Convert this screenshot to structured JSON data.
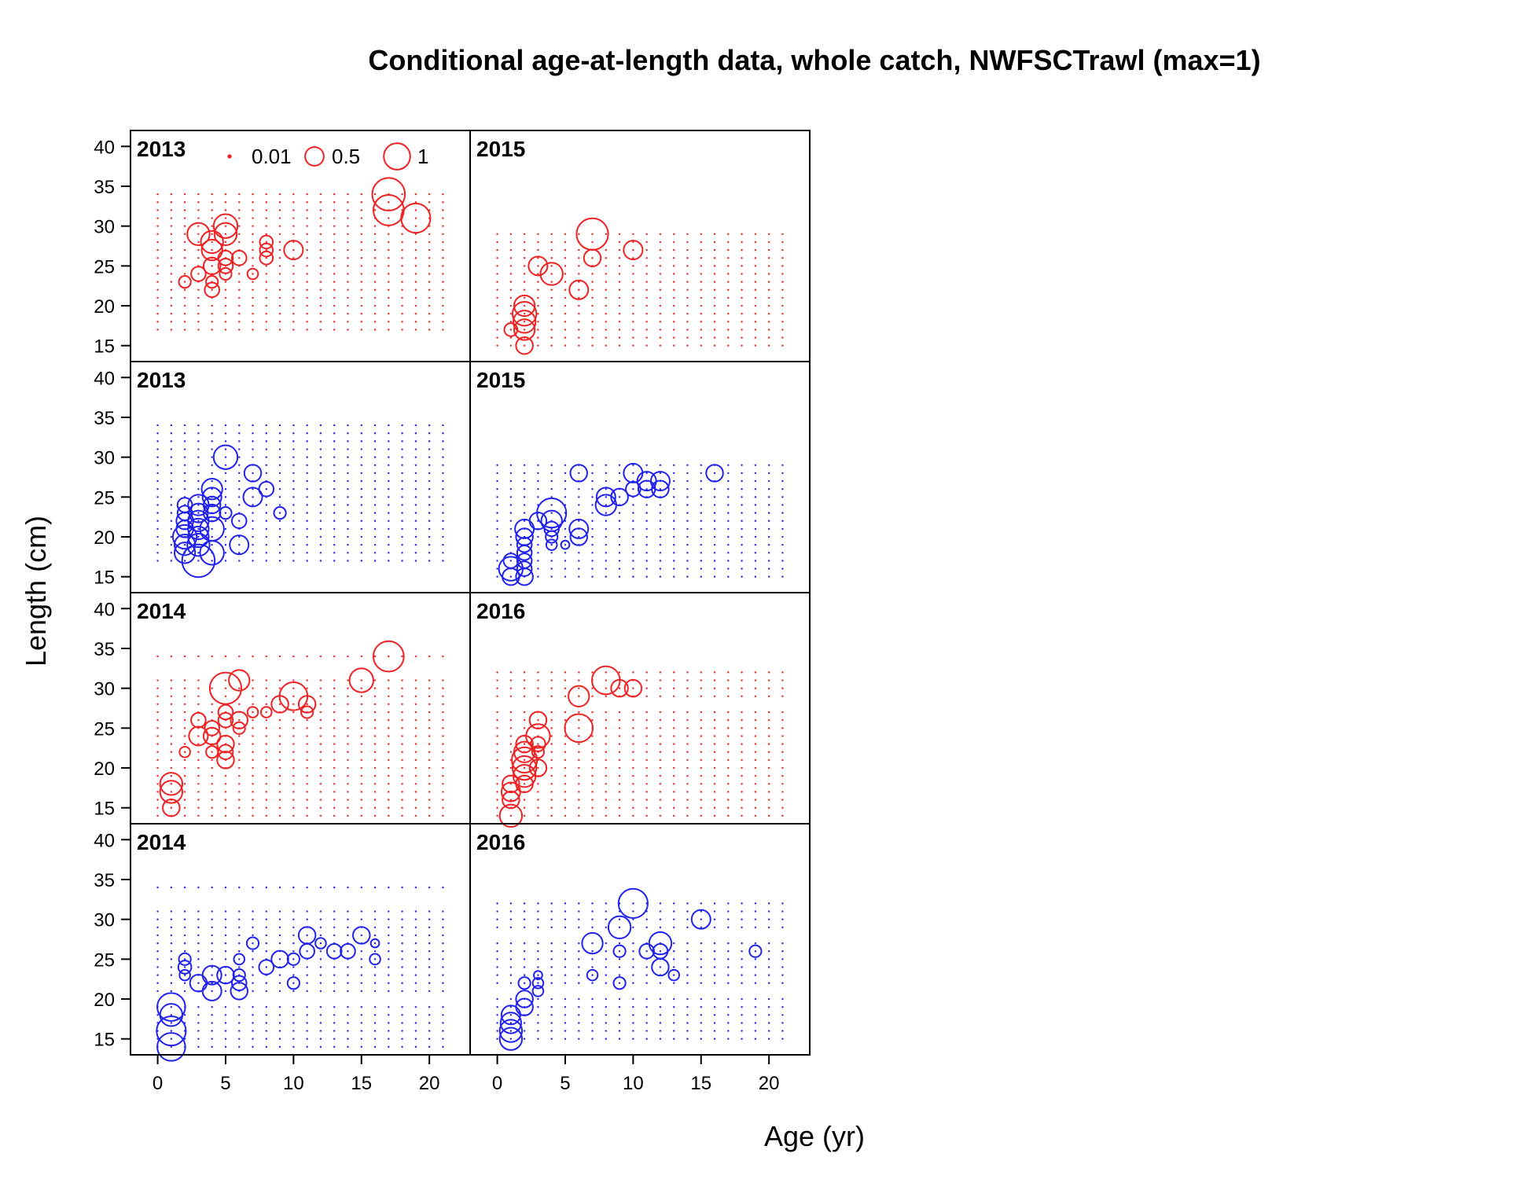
{
  "chart_data": {
    "type": "scatter",
    "title": "Conditional age-at-length data, whole catch, NWFSCTrawl (max=1)",
    "xlabel": "Age (yr)",
    "ylabel": "Length (cm)",
    "xlim": [
      -2,
      23
    ],
    "ylim": [
      13,
      42
    ],
    "x_ticks": [
      0,
      5,
      10,
      15,
      20
    ],
    "y_ticks": [
      15,
      20,
      25,
      30,
      35,
      40
    ],
    "legend": {
      "placement": "top-left",
      "entries": [
        {
          "label": "0.01",
          "value": 0.01
        },
        {
          "label": "0.5",
          "value": 0.5
        },
        {
          "label": "1",
          "value": 1
        }
      ]
    },
    "colors": {
      "female": "#ee2222",
      "male": "#2222ee"
    },
    "panels": [
      {
        "year": "2013",
        "color": "female",
        "row": 0,
        "col": 0,
        "grid": {
          "ages": [
            0,
            21
          ],
          "lengths": [
            [
              17,
              34
            ]
          ]
        },
        "points": [
          [
            2,
            23,
            0.1
          ],
          [
            3,
            24,
            0.15
          ],
          [
            3,
            29,
            0.35
          ],
          [
            4,
            22,
            0.15
          ],
          [
            4,
            23,
            0.1
          ],
          [
            4,
            25,
            0.2
          ],
          [
            4,
            27,
            0.3
          ],
          [
            4,
            28,
            0.35
          ],
          [
            5,
            24,
            0.1
          ],
          [
            5,
            25,
            0.15
          ],
          [
            5,
            26,
            0.15
          ],
          [
            5,
            29,
            0.35
          ],
          [
            5,
            30,
            0.4
          ],
          [
            6,
            26,
            0.15
          ],
          [
            7,
            24,
            0.08
          ],
          [
            8,
            26,
            0.12
          ],
          [
            8,
            27,
            0.12
          ],
          [
            8,
            28,
            0.12
          ],
          [
            10,
            27,
            0.25
          ],
          [
            17,
            32,
            0.65
          ],
          [
            17,
            34,
            0.75
          ],
          [
            19,
            31,
            0.6
          ]
        ]
      },
      {
        "year": "2015",
        "color": "female",
        "row": 0,
        "col": 1,
        "grid": {
          "ages": [
            0,
            21
          ],
          "lengths": [
            [
              15,
              29
            ]
          ]
        },
        "points": [
          [
            1,
            17,
            0.12
          ],
          [
            2,
            15,
            0.2
          ],
          [
            2,
            17,
            0.3
          ],
          [
            2,
            18,
            0.35
          ],
          [
            2,
            19,
            0.4
          ],
          [
            2,
            20,
            0.3
          ],
          [
            3,
            25,
            0.25
          ],
          [
            4,
            24,
            0.35
          ],
          [
            6,
            22,
            0.25
          ],
          [
            7,
            26,
            0.2
          ],
          [
            7,
            29,
            0.7
          ],
          [
            10,
            27,
            0.25
          ]
        ]
      },
      {
        "year": "2013",
        "color": "male",
        "row": 1,
        "col": 0,
        "grid": {
          "ages": [
            0,
            21
          ],
          "lengths": [
            [
              17,
              34
            ]
          ]
        },
        "points": [
          [
            2,
            18,
            0.3
          ],
          [
            2,
            19,
            0.3
          ],
          [
            2,
            20,
            0.4
          ],
          [
            2,
            21,
            0.2
          ],
          [
            2,
            22,
            0.2
          ],
          [
            2,
            23,
            0.15
          ],
          [
            2,
            24,
            0.15
          ],
          [
            3,
            17,
            0.75
          ],
          [
            3,
            19,
            0.35
          ],
          [
            3,
            20,
            0.3
          ],
          [
            3,
            21,
            0.3
          ],
          [
            3,
            22,
            0.3
          ],
          [
            3,
            23,
            0.25
          ],
          [
            3,
            24,
            0.3
          ],
          [
            4,
            18,
            0.4
          ],
          [
            4,
            21,
            0.4
          ],
          [
            4,
            23,
            0.2
          ],
          [
            4,
            24,
            0.2
          ],
          [
            4,
            25,
            0.25
          ],
          [
            4,
            26,
            0.3
          ],
          [
            5,
            23,
            0.1
          ],
          [
            5,
            30,
            0.4
          ],
          [
            6,
            19,
            0.25
          ],
          [
            6,
            22,
            0.15
          ],
          [
            7,
            25,
            0.25
          ],
          [
            7,
            28,
            0.2
          ],
          [
            8,
            26,
            0.15
          ],
          [
            9,
            23,
            0.1
          ]
        ]
      },
      {
        "year": "2015",
        "color": "male",
        "row": 1,
        "col": 1,
        "grid": {
          "ages": [
            0,
            21
          ],
          "lengths": [
            [
              15,
              29
            ]
          ]
        },
        "points": [
          [
            1,
            15,
            0.2
          ],
          [
            1,
            16,
            0.4
          ],
          [
            1,
            17,
            0.15
          ],
          [
            2,
            15,
            0.2
          ],
          [
            2,
            16,
            0.15
          ],
          [
            2,
            17,
            0.15
          ],
          [
            2,
            18,
            0.15
          ],
          [
            2,
            19,
            0.15
          ],
          [
            2,
            20,
            0.2
          ],
          [
            2,
            21,
            0.25
          ],
          [
            3,
            22,
            0.2
          ],
          [
            4,
            19,
            0.08
          ],
          [
            4,
            20,
            0.1
          ],
          [
            4,
            21,
            0.15
          ],
          [
            4,
            22,
            0.3
          ],
          [
            4,
            23,
            0.6
          ],
          [
            5,
            19,
            0.05
          ],
          [
            6,
            20,
            0.2
          ],
          [
            6,
            21,
            0.25
          ],
          [
            6,
            28,
            0.2
          ],
          [
            8,
            24,
            0.3
          ],
          [
            8,
            25,
            0.25
          ],
          [
            9,
            25,
            0.2
          ],
          [
            10,
            26,
            0.15
          ],
          [
            10,
            28,
            0.25
          ],
          [
            11,
            26,
            0.2
          ],
          [
            11,
            27,
            0.25
          ],
          [
            12,
            26,
            0.2
          ],
          [
            12,
            27,
            0.25
          ],
          [
            16,
            28,
            0.2
          ]
        ]
      },
      {
        "year": "2014",
        "color": "female",
        "row": 2,
        "col": 0,
        "grid": {
          "ages": [
            0,
            21
          ],
          "lengths": [
            [
              14,
              31
            ],
            [
              34,
              34
            ]
          ]
        },
        "points": [
          [
            1,
            15,
            0.2
          ],
          [
            1,
            17,
            0.35
          ],
          [
            1,
            18,
            0.35
          ],
          [
            2,
            22,
            0.08
          ],
          [
            3,
            24,
            0.25
          ],
          [
            3,
            26,
            0.15
          ],
          [
            4,
            22,
            0.1
          ],
          [
            4,
            24,
            0.2
          ],
          [
            4,
            25,
            0.15
          ],
          [
            5,
            21,
            0.2
          ],
          [
            5,
            22,
            0.15
          ],
          [
            5,
            23,
            0.2
          ],
          [
            5,
            26,
            0.15
          ],
          [
            5,
            27,
            0.15
          ],
          [
            5,
            30,
            0.7
          ],
          [
            6,
            25,
            0.1
          ],
          [
            6,
            26,
            0.2
          ],
          [
            6,
            31,
            0.3
          ],
          [
            7,
            27,
            0.08
          ],
          [
            8,
            27,
            0.08
          ],
          [
            9,
            28,
            0.2
          ],
          [
            10,
            29,
            0.55
          ],
          [
            11,
            27,
            0.1
          ],
          [
            11,
            28,
            0.2
          ],
          [
            15,
            31,
            0.4
          ],
          [
            17,
            34,
            0.65
          ]
        ]
      },
      {
        "year": "2016",
        "color": "female",
        "row": 2,
        "col": 1,
        "grid": {
          "ages": [
            0,
            21
          ],
          "lengths": [
            [
              14,
              27
            ],
            [
              29,
              32
            ]
          ]
        },
        "points": [
          [
            1,
            14,
            0.35
          ],
          [
            1,
            16,
            0.2
          ],
          [
            1,
            17,
            0.25
          ],
          [
            1,
            18,
            0.2
          ],
          [
            2,
            18,
            0.2
          ],
          [
            2,
            19,
            0.35
          ],
          [
            2,
            20,
            0.4
          ],
          [
            2,
            21,
            0.45
          ],
          [
            2,
            22,
            0.3
          ],
          [
            2,
            23,
            0.2
          ],
          [
            3,
            20,
            0.2
          ],
          [
            3,
            22,
            0.1
          ],
          [
            3,
            23,
            0.15
          ],
          [
            3,
            24,
            0.4
          ],
          [
            3,
            26,
            0.2
          ],
          [
            6,
            25,
            0.55
          ],
          [
            6,
            29,
            0.3
          ],
          [
            8,
            31,
            0.55
          ],
          [
            9,
            30,
            0.2
          ],
          [
            10,
            30,
            0.2
          ]
        ]
      },
      {
        "year": "2014",
        "color": "male",
        "row": 3,
        "col": 0,
        "grid": {
          "ages": [
            0,
            21
          ],
          "lengths": [
            [
              14,
              19
            ],
            [
              21,
              31
            ],
            [
              34,
              34
            ]
          ]
        },
        "points": [
          [
            1,
            14,
            0.55
          ],
          [
            1,
            16,
            0.6
          ],
          [
            1,
            18,
            0.35
          ],
          [
            1,
            19,
            0.55
          ],
          [
            2,
            23,
            0.08
          ],
          [
            2,
            24,
            0.12
          ],
          [
            2,
            25,
            0.1
          ],
          [
            3,
            22,
            0.2
          ],
          [
            4,
            21,
            0.25
          ],
          [
            4,
            23,
            0.25
          ],
          [
            5,
            23,
            0.2
          ],
          [
            6,
            21,
            0.2
          ],
          [
            6,
            22,
            0.15
          ],
          [
            6,
            23,
            0.1
          ],
          [
            6,
            25,
            0.08
          ],
          [
            7,
            27,
            0.1
          ],
          [
            8,
            24,
            0.15
          ],
          [
            9,
            25,
            0.2
          ],
          [
            10,
            22,
            0.1
          ],
          [
            10,
            25,
            0.1
          ],
          [
            11,
            26,
            0.15
          ],
          [
            11,
            28,
            0.2
          ],
          [
            12,
            27,
            0.08
          ],
          [
            13,
            26,
            0.15
          ],
          [
            14,
            26,
            0.15
          ],
          [
            15,
            28,
            0.2
          ],
          [
            16,
            25,
            0.08
          ],
          [
            16,
            27,
            0.05
          ]
        ]
      },
      {
        "year": "2016",
        "color": "male",
        "row": 3,
        "col": 1,
        "grid": {
          "ages": [
            0,
            21
          ],
          "lengths": [
            [
              15,
              20
            ],
            [
              22,
              27
            ],
            [
              29,
              32
            ]
          ]
        },
        "points": [
          [
            1,
            15,
            0.35
          ],
          [
            1,
            16,
            0.35
          ],
          [
            1,
            17,
            0.3
          ],
          [
            1,
            18,
            0.25
          ],
          [
            2,
            19,
            0.2
          ],
          [
            2,
            20,
            0.2
          ],
          [
            2,
            22,
            0.1
          ],
          [
            3,
            21,
            0.08
          ],
          [
            3,
            22,
            0.08
          ],
          [
            3,
            23,
            0.05
          ],
          [
            7,
            23,
            0.08
          ],
          [
            7,
            27,
            0.3
          ],
          [
            9,
            22,
            0.1
          ],
          [
            9,
            26,
            0.1
          ],
          [
            9,
            29,
            0.35
          ],
          [
            10,
            32,
            0.6
          ],
          [
            11,
            26,
            0.15
          ],
          [
            12,
            24,
            0.2
          ],
          [
            12,
            26,
            0.15
          ],
          [
            12,
            27,
            0.35
          ],
          [
            13,
            23,
            0.08
          ],
          [
            15,
            30,
            0.25
          ],
          [
            19,
            26,
            0.1
          ]
        ]
      }
    ]
  }
}
